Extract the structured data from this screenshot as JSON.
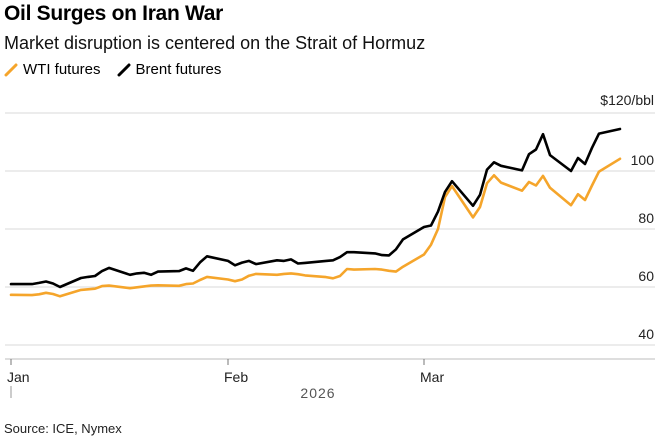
{
  "title": "Oil Surges on Iran War",
  "subtitle": "Market disruption is centered on the Strait of Hormuz",
  "source": "Source: ICE, Nymex",
  "colors": {
    "wti": "#f5a52b",
    "brent": "#000000",
    "grid": "#d9d9d9"
  },
  "chart_data": {
    "type": "line",
    "title": "Oil Surges on Iran War",
    "subtitle": "Market disruption is centered on the Strait of Hormuz",
    "xlabel": "2026",
    "ylabel": "",
    "unit_label": "$120/bbl",
    "ylim": [
      40,
      120
    ],
    "yticks": [
      40,
      60,
      80,
      100
    ],
    "xticks": [
      {
        "label": "Jan",
        "date": "2026-01-02"
      },
      {
        "label": "Feb",
        "date": "2026-02-02"
      },
      {
        "label": "Mar",
        "date": "2026-03-02"
      }
    ],
    "xlim": [
      "2026-01-01",
      "2026-03-31"
    ],
    "grid": "horizontal",
    "legend": "top-left",
    "series": [
      {
        "name": "WTI futures",
        "color": "#f5a52b",
        "points": [
          [
            "2026-01-02",
            57.3
          ],
          [
            "2026-01-05",
            57.2
          ],
          [
            "2026-01-06",
            57.5
          ],
          [
            "2026-01-07",
            58.0
          ],
          [
            "2026-01-08",
            57.6
          ],
          [
            "2026-01-09",
            56.8
          ],
          [
            "2026-01-12",
            59.0
          ],
          [
            "2026-01-13",
            59.2
          ],
          [
            "2026-01-14",
            59.4
          ],
          [
            "2026-01-15",
            60.3
          ],
          [
            "2026-01-16",
            60.5
          ],
          [
            "2026-01-19",
            59.6
          ],
          [
            "2026-01-20",
            59.9
          ],
          [
            "2026-01-21",
            60.2
          ],
          [
            "2026-01-22",
            60.5
          ],
          [
            "2026-01-23",
            60.6
          ],
          [
            "2026-01-26",
            60.4
          ],
          [
            "2026-01-27",
            61.0
          ],
          [
            "2026-01-28",
            61.2
          ],
          [
            "2026-01-29",
            62.4
          ],
          [
            "2026-01-30",
            63.5
          ],
          [
            "2026-02-02",
            62.6
          ],
          [
            "2026-02-03",
            62.0
          ],
          [
            "2026-02-04",
            62.6
          ],
          [
            "2026-02-05",
            63.9
          ],
          [
            "2026-02-06",
            64.5
          ],
          [
            "2026-02-09",
            64.2
          ],
          [
            "2026-02-10",
            64.5
          ],
          [
            "2026-02-11",
            64.7
          ],
          [
            "2026-02-12",
            64.4
          ],
          [
            "2026-02-13",
            64.0
          ],
          [
            "2026-02-16",
            63.4
          ],
          [
            "2026-02-17",
            63.0
          ],
          [
            "2026-02-18",
            63.8
          ],
          [
            "2026-02-19",
            66.2
          ],
          [
            "2026-02-20",
            66.0
          ],
          [
            "2026-02-23",
            66.2
          ],
          [
            "2026-02-24",
            66.0
          ],
          [
            "2026-02-25",
            65.6
          ],
          [
            "2026-02-26",
            65.3
          ],
          [
            "2026-02-27",
            67.0
          ],
          [
            "2026-03-02",
            71.2
          ],
          [
            "2026-03-03",
            74.6
          ],
          [
            "2026-03-04",
            80.0
          ],
          [
            "2026-03-05",
            91.0
          ],
          [
            "2026-03-06",
            94.8
          ],
          [
            "2026-03-09",
            84.0
          ],
          [
            "2026-03-10",
            87.6
          ],
          [
            "2026-03-11",
            95.8
          ],
          [
            "2026-03-12",
            98.5
          ],
          [
            "2026-03-13",
            96.0
          ],
          [
            "2026-03-16",
            93.2
          ],
          [
            "2026-03-17",
            96.2
          ],
          [
            "2026-03-18",
            95.0
          ],
          [
            "2026-03-19",
            98.3
          ],
          [
            "2026-03-20",
            94.2
          ],
          [
            "2026-03-23",
            88.2
          ],
          [
            "2026-03-24",
            92.0
          ],
          [
            "2026-03-25",
            90.0
          ],
          [
            "2026-03-26",
            95.0
          ],
          [
            "2026-03-27",
            99.8
          ],
          [
            "2026-03-30",
            104.2
          ]
        ]
      },
      {
        "name": "Brent futures",
        "color": "#000000",
        "points": [
          [
            "2026-01-02",
            61.0
          ],
          [
            "2026-01-05",
            61.0
          ],
          [
            "2026-01-06",
            61.4
          ],
          [
            "2026-01-07",
            61.9
          ],
          [
            "2026-01-08",
            61.2
          ],
          [
            "2026-01-09",
            60.0
          ],
          [
            "2026-01-12",
            63.1
          ],
          [
            "2026-01-13",
            63.5
          ],
          [
            "2026-01-14",
            63.8
          ],
          [
            "2026-01-15",
            65.5
          ],
          [
            "2026-01-16",
            66.6
          ],
          [
            "2026-01-19",
            64.2
          ],
          [
            "2026-01-20",
            64.7
          ],
          [
            "2026-01-21",
            64.9
          ],
          [
            "2026-01-22",
            64.2
          ],
          [
            "2026-01-23",
            65.3
          ],
          [
            "2026-01-26",
            65.5
          ],
          [
            "2026-01-27",
            66.4
          ],
          [
            "2026-01-28",
            65.6
          ],
          [
            "2026-01-29",
            68.5
          ],
          [
            "2026-01-30",
            70.6
          ],
          [
            "2026-02-02",
            69.0
          ],
          [
            "2026-02-03",
            67.5
          ],
          [
            "2026-02-04",
            68.4
          ],
          [
            "2026-02-05",
            69.0
          ],
          [
            "2026-02-06",
            67.9
          ],
          [
            "2026-02-09",
            69.2
          ],
          [
            "2026-02-10",
            69.0
          ],
          [
            "2026-02-11",
            69.5
          ],
          [
            "2026-02-12",
            68.1
          ],
          [
            "2026-02-13",
            68.3
          ],
          [
            "2026-02-16",
            69.0
          ],
          [
            "2026-02-17",
            69.2
          ],
          [
            "2026-02-18",
            70.3
          ],
          [
            "2026-02-19",
            72.0
          ],
          [
            "2026-02-20",
            72.0
          ],
          [
            "2026-02-23",
            71.6
          ],
          [
            "2026-02-24",
            71.0
          ],
          [
            "2026-02-25",
            70.9
          ],
          [
            "2026-02-26",
            73.0
          ],
          [
            "2026-02-27",
            76.4
          ],
          [
            "2026-03-02",
            80.7
          ],
          [
            "2026-03-03",
            81.2
          ],
          [
            "2026-03-04",
            86.0
          ],
          [
            "2026-03-05",
            92.8
          ],
          [
            "2026-03-06",
            96.5
          ],
          [
            "2026-03-09",
            88.0
          ],
          [
            "2026-03-10",
            91.8
          ],
          [
            "2026-03-11",
            100.5
          ],
          [
            "2026-03-12",
            103.0
          ],
          [
            "2026-03-13",
            101.8
          ],
          [
            "2026-03-16",
            100.2
          ],
          [
            "2026-03-17",
            105.8
          ],
          [
            "2026-03-18",
            107.4
          ],
          [
            "2026-03-19",
            112.7
          ],
          [
            "2026-03-20",
            105.5
          ],
          [
            "2026-03-23",
            100.0
          ],
          [
            "2026-03-24",
            104.5
          ],
          [
            "2026-03-25",
            102.4
          ],
          [
            "2026-03-26",
            108.0
          ],
          [
            "2026-03-27",
            112.9
          ],
          [
            "2026-03-30",
            114.5
          ]
        ]
      }
    ]
  }
}
